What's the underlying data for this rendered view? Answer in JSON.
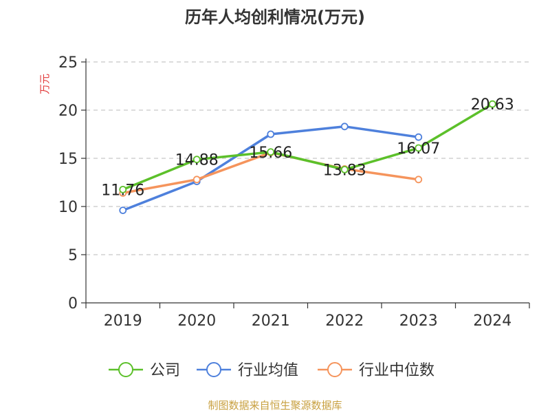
{
  "chart_data": {
    "type": "line",
    "title": "历年人均创利情况(万元)",
    "ylabel": "万元",
    "xlabel": "",
    "categories": [
      "2019",
      "2020",
      "2021",
      "2022",
      "2023",
      "2024"
    ],
    "ylim": [
      0,
      25
    ],
    "yticks": [
      0,
      5,
      10,
      15,
      20,
      25
    ],
    "grid": true,
    "legend_position": "bottom",
    "series": [
      {
        "name": "公司",
        "color": "#5cc02a",
        "values": [
          11.76,
          14.88,
          15.66,
          13.83,
          16.07,
          20.63
        ],
        "labels": [
          "11.76",
          "14.88",
          "15.66",
          "13.83",
          "16.07",
          "20.63"
        ]
      },
      {
        "name": "行业均值",
        "color": "#4e80dc",
        "values": [
          9.6,
          12.6,
          17.5,
          18.3,
          17.2,
          null
        ]
      },
      {
        "name": "行业中位数",
        "color": "#f5945c",
        "values": [
          11.4,
          12.8,
          15.6,
          13.9,
          12.8,
          null
        ]
      }
    ],
    "source": "制图数据来自恒生聚源数据库"
  }
}
